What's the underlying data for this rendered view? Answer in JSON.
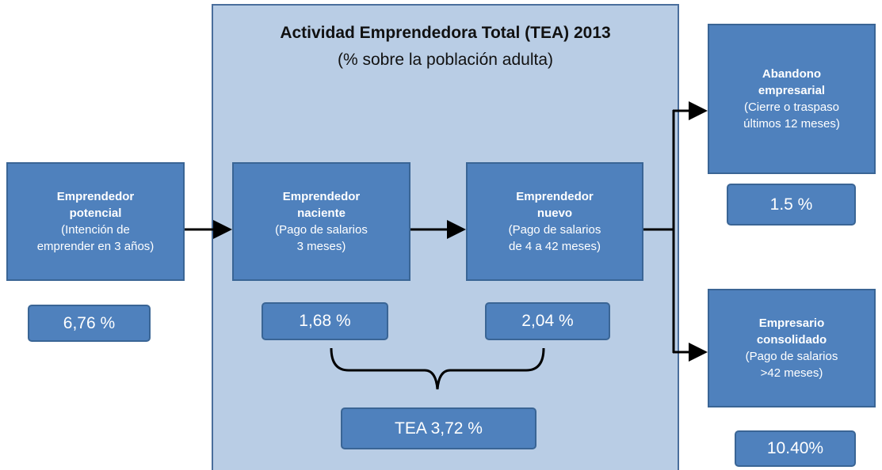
{
  "title": "Actividad Emprendedora Total (TEA) 2013",
  "subtitle": "(% sobre la población adulta)",
  "nodes": [
    {
      "label": [
        "Emprendedor",
        "potencial"
      ],
      "note": [
        "(Intención de",
        "emprender en 3 años)"
      ],
      "value": "6,76 %"
    },
    {
      "label": [
        "Emprendedor",
        "naciente"
      ],
      "note": [
        "(Pago de salarios",
        "3 meses)"
      ],
      "value": "1,68 %"
    },
    {
      "label": [
        "Emprendedor",
        "nuevo"
      ],
      "note": [
        "(Pago de salarios",
        "de 4 a 42 meses)"
      ],
      "value": "2,04 %"
    },
    {
      "label": [
        "Abandono",
        "empresarial"
      ],
      "note": [
        "(Cierre o traspaso",
        "últimos 12 meses)"
      ],
      "value": "1.5 %"
    },
    {
      "label": [
        "Empresario",
        "consolidado"
      ],
      "note": [
        "(Pago de salarios",
        ">42 meses)"
      ],
      "value": "10.40%"
    }
  ],
  "tea": "TEA 3,72 %"
}
